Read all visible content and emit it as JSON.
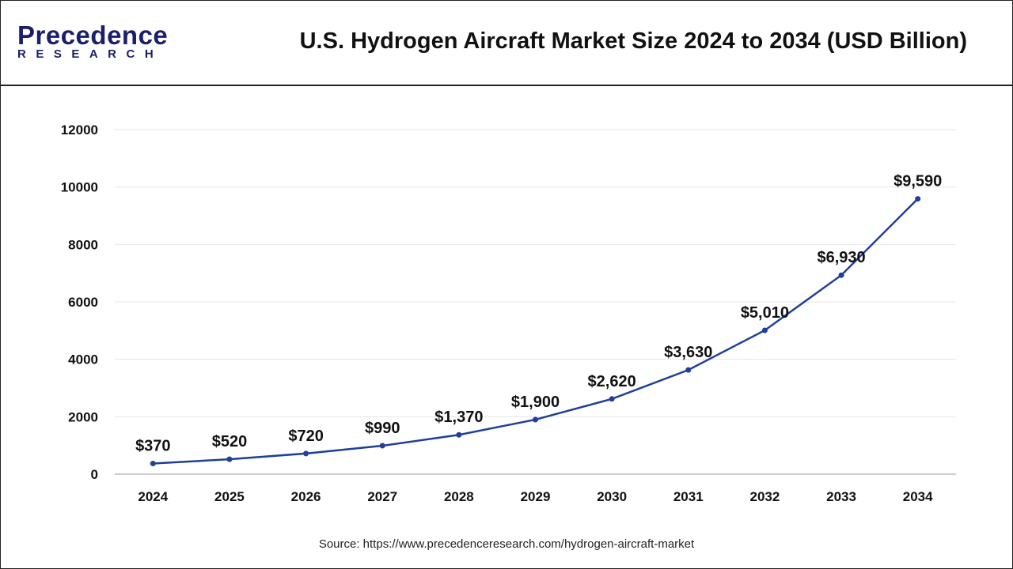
{
  "header": {
    "logo_text": "Precedence RESEARCH",
    "logo_main": "Precedence",
    "logo_sub": "RESEARCH",
    "title": "U.S. Hydrogen Aircraft Market Size 2024 to 2034 (USD Billion)"
  },
  "source": "Source: https://www.precedenceresearch.com/hydrogen-aircraft-market",
  "colors": {
    "line": "#1f3f99",
    "grid": "#e6e6e6",
    "brand_dark": "#1b1f6b",
    "brand_blue": "#2a52c9"
  },
  "chart_data": {
    "type": "line",
    "title": "U.S. Hydrogen Aircraft Market Size 2024 to 2034 (USD Billion)",
    "xlabel": "",
    "ylabel": "",
    "categories": [
      "2024",
      "2025",
      "2026",
      "2027",
      "2028",
      "2029",
      "2030",
      "2031",
      "2032",
      "2033",
      "2034"
    ],
    "values": [
      370,
      520,
      720,
      990,
      1370,
      1900,
      2620,
      3630,
      5010,
      6930,
      9590
    ],
    "data_labels": [
      "$370",
      "$520",
      "$720",
      "$990",
      "$1,370",
      "$1,900",
      "$2,620",
      "$3,630",
      "$5,010",
      "$6,930",
      "$9,590"
    ],
    "ylim": [
      0,
      12000
    ],
    "yticks": [
      0,
      2000,
      4000,
      6000,
      8000,
      10000,
      12000
    ],
    "grid": true,
    "legend": "none"
  }
}
